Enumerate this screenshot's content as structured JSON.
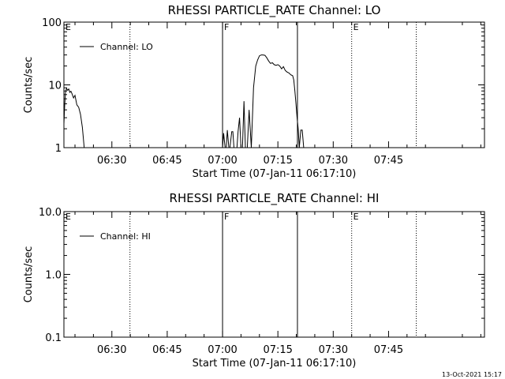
{
  "chart_data": [
    {
      "type": "line",
      "title": "RHESSI PARTICLE_RATE Channel: LO",
      "xlabel": "Start Time (07-Jan-11 06:17:10)",
      "ylabel": "Counts/sec",
      "yscale": "log",
      "ylim": [
        1,
        100
      ],
      "ytick_labels": [
        "1",
        "10",
        "100"
      ],
      "yticks": [
        1,
        10,
        100
      ],
      "xlim": [
        377,
        491
      ],
      "xtick_labels": [
        "06:30",
        "06:45",
        "07:00",
        "07:15",
        "07:30",
        "07:45"
      ],
      "xticks": [
        390,
        405,
        420,
        435,
        450,
        465
      ],
      "legend": "top-left",
      "series": [
        {
          "name": "Channel: LO",
          "x": [
            377.0,
            377.2,
            377.4,
            377.7,
            378.0,
            378.3,
            378.6,
            378.9,
            379.2,
            379.6,
            380.0,
            380.5,
            381.0,
            381.5,
            382.0,
            382.5,
            383.0,
            383.3,
            420.0,
            420.3,
            420.7,
            421.0,
            421.3,
            421.7,
            422.0,
            422.5,
            422.8,
            423.1,
            423.5,
            423.9,
            424.2,
            424.6,
            425.0,
            425.4,
            425.8,
            426.2,
            426.7,
            427.2,
            427.8,
            428.4,
            429.0,
            429.5,
            430.0,
            430.5,
            431.0,
            431.5,
            432.0,
            432.5,
            433.0,
            433.5,
            434.0,
            434.5,
            435.0,
            435.5,
            436.0,
            436.5,
            437.0,
            437.5,
            438.0,
            438.5,
            439.0,
            439.3,
            439.6,
            439.9,
            440.2,
            440.5,
            440.8,
            441.2,
            441.6,
            442.0,
            442.4
          ],
          "y": [
            2.4,
            4.5,
            7.5,
            8.8,
            8.2,
            8.6,
            7.6,
            7.9,
            7.2,
            6.2,
            6.8,
            4.8,
            4.4,
            3.4,
            2.1,
            1.0,
            1.0,
            1.0,
            1.0,
            1.7,
            1.0,
            1.0,
            1.9,
            1.0,
            1.0,
            1.8,
            1.8,
            1.0,
            1.0,
            1.0,
            1.8,
            3.0,
            1.0,
            1.0,
            5.5,
            1.0,
            1.0,
            4.0,
            1.0,
            9.0,
            20.0,
            25.0,
            29.0,
            30.0,
            30.0,
            29.5,
            27.0,
            24.0,
            22.0,
            22.5,
            21.0,
            20.5,
            21.0,
            20.0,
            18.0,
            19.5,
            17.0,
            16.0,
            15.5,
            14.5,
            14.0,
            12.0,
            8.0,
            5.0,
            3.0,
            2.0,
            1.0,
            1.9,
            1.9,
            1.0,
            1.0
          ]
        }
      ]
    },
    {
      "type": "line",
      "title": "RHESSI PARTICLE_RATE Channel: HI",
      "xlabel": "Start Time (07-Jan-11 06:17:10)",
      "ylabel": "Counts/sec",
      "yscale": "log",
      "ylim": [
        0.1,
        10
      ],
      "ytick_labels": [
        "0.1",
        "1.0",
        "10.0"
      ],
      "yticks": [
        0.1,
        1,
        10
      ],
      "xlim": [
        377,
        491
      ],
      "xtick_labels": [
        "06:30",
        "06:45",
        "07:00",
        "07:15",
        "07:30",
        "07:45"
      ],
      "xticks": [
        390,
        405,
        420,
        435,
        450,
        465
      ],
      "legend": "top-left",
      "series": [
        {
          "name": "Channel: HI",
          "x": [],
          "y": []
        }
      ]
    }
  ],
  "markers": [
    {
      "label": "E",
      "time": 377.0,
      "style": "none"
    },
    {
      "label": "",
      "time": 394.9,
      "style": "dotted"
    },
    {
      "label": "F",
      "time": 420.0,
      "style": "solid"
    },
    {
      "label": "",
      "time": 440.3,
      "style": "solid"
    },
    {
      "label": "E",
      "time": 455.0,
      "style": "dotted"
    },
    {
      "label": "",
      "time": 472.5,
      "style": "dotted"
    }
  ],
  "footer": {
    "timestamp": "13-Oct-2021 15:17"
  }
}
